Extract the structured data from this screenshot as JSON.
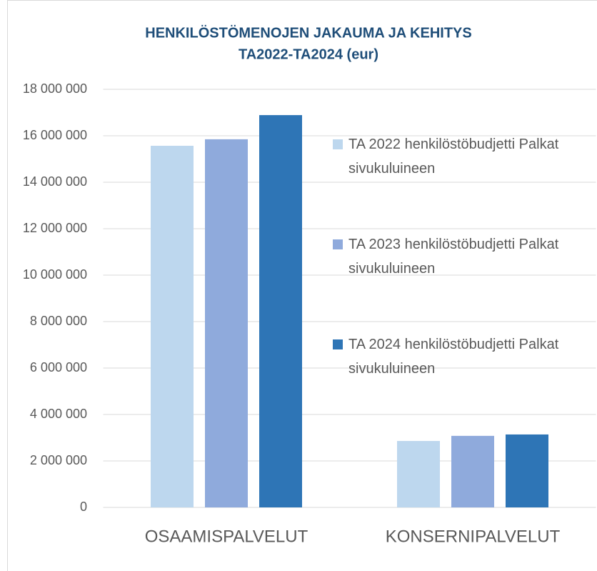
{
  "chart_data": {
    "type": "bar",
    "title": "HENKILÖSTÖMENOJEN JAKAUMA JA KEHITYS",
    "subtitle": "TA2022-TA2024  (eur)",
    "categories": [
      "OSAAMISPALVELUT",
      "KONSERNIPALVELUT"
    ],
    "series": [
      {
        "name": "TA 2022 henkilöstöbudjetti Palkat sivukuluineen",
        "color": "#bdd7ee",
        "values": [
          15570000,
          2860000
        ]
      },
      {
        "name": "TA 2023 henkilöstöbudjetti Palkat sivukuluineen",
        "color": "#8faadc",
        "values": [
          15850000,
          3080000
        ]
      },
      {
        "name": "TA 2024 henkilöstöbudjetti Palkat sivukuluineen",
        "color": "#2e75b6",
        "values": [
          16890000,
          3140000
        ]
      }
    ],
    "ylim": [
      0,
      18000000
    ],
    "yticks": [
      {
        "value": 0,
        "label": "0"
      },
      {
        "value": 2000000,
        "label": "2 000 000"
      },
      {
        "value": 4000000,
        "label": "4 000 000"
      },
      {
        "value": 6000000,
        "label": "6 000 000"
      },
      {
        "value": 8000000,
        "label": "8 000 000"
      },
      {
        "value": 10000000,
        "label": "10 000 000"
      },
      {
        "value": 12000000,
        "label": "12 000 000"
      },
      {
        "value": 14000000,
        "label": "14 000 000"
      },
      {
        "value": 16000000,
        "label": "16 000 000"
      },
      {
        "value": 18000000,
        "label": "18 000 000"
      }
    ],
    "grid": true,
    "legend": "right"
  }
}
